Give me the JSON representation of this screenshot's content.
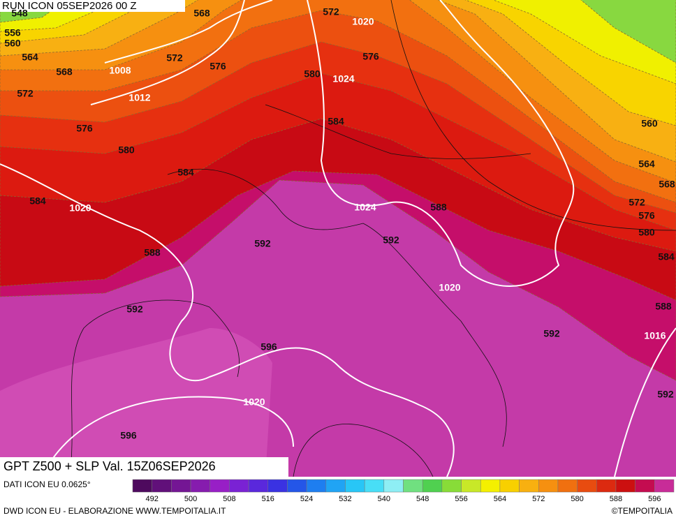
{
  "header": {
    "run": "RUN ICON 05SEP2026 00 Z",
    "title": "GPT Z500 + SLP Val. 15Z06SEP2026",
    "source": "DATI ICON EU 0.0625°",
    "credit": "DWD ICON EU - ELABORAZIONE WWW.TEMPOITALIA.IT",
    "copyright": "©TEMPOITALIA"
  },
  "map": {
    "gpt_labels": [
      "548",
      "556",
      "560",
      "564",
      "568",
      "572",
      "576",
      "580",
      "584",
      "584",
      "588",
      "592",
      "592",
      "592",
      "592",
      "592",
      "596",
      "596",
      "568",
      "572",
      "572",
      "576",
      "576",
      "580",
      "584",
      "588",
      "560",
      "564",
      "568",
      "572",
      "576",
      "580",
      "584",
      "588"
    ],
    "slp_labels": [
      "1020",
      "1008",
      "1012",
      "1024",
      "1020",
      "1024",
      "1020",
      "1016",
      "1020"
    ]
  },
  "colorbar": {
    "colors": [
      "#4e0a5e",
      "#61107a",
      "#741694",
      "#861cae",
      "#981fc6",
      "#7a22d4",
      "#5a28dc",
      "#3a32e2",
      "#2456e8",
      "#1e7ef0",
      "#20a4f4",
      "#28c6f6",
      "#48def6",
      "#8eeef4",
      "#70e080",
      "#50d050",
      "#88dc38",
      "#c8e828",
      "#f4f000",
      "#f8d000",
      "#f8b010",
      "#f69010",
      "#f07010",
      "#e84c10",
      "#dc2a10",
      "#cc1010",
      "#c40c50",
      "#c82c98"
    ],
    "labels": [
      "492",
      "500",
      "508",
      "516",
      "524",
      "532",
      "540",
      "548",
      "556",
      "564",
      "572",
      "580",
      "588",
      "596"
    ]
  }
}
